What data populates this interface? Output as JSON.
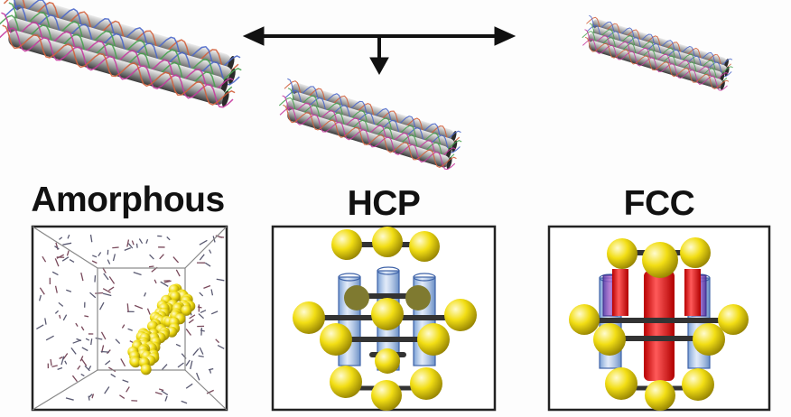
{
  "panels": [
    {
      "id": "amorphous",
      "label": "Amorphous"
    },
    {
      "id": "hcp",
      "label": "HCP"
    },
    {
      "id": "fcc",
      "label": "FCC"
    }
  ],
  "colors": {
    "sphere": "#f0dc12",
    "sphere_dark": "#8f7d00",
    "tube_blue": "#6f9ad8",
    "tube_red": "#e81818",
    "bond": "#333333",
    "rod_body": "#9a9a9a",
    "frame": "#222222",
    "arrow": "#111111"
  },
  "icons": [
    "bundle-icon",
    "arrow-icon"
  ]
}
